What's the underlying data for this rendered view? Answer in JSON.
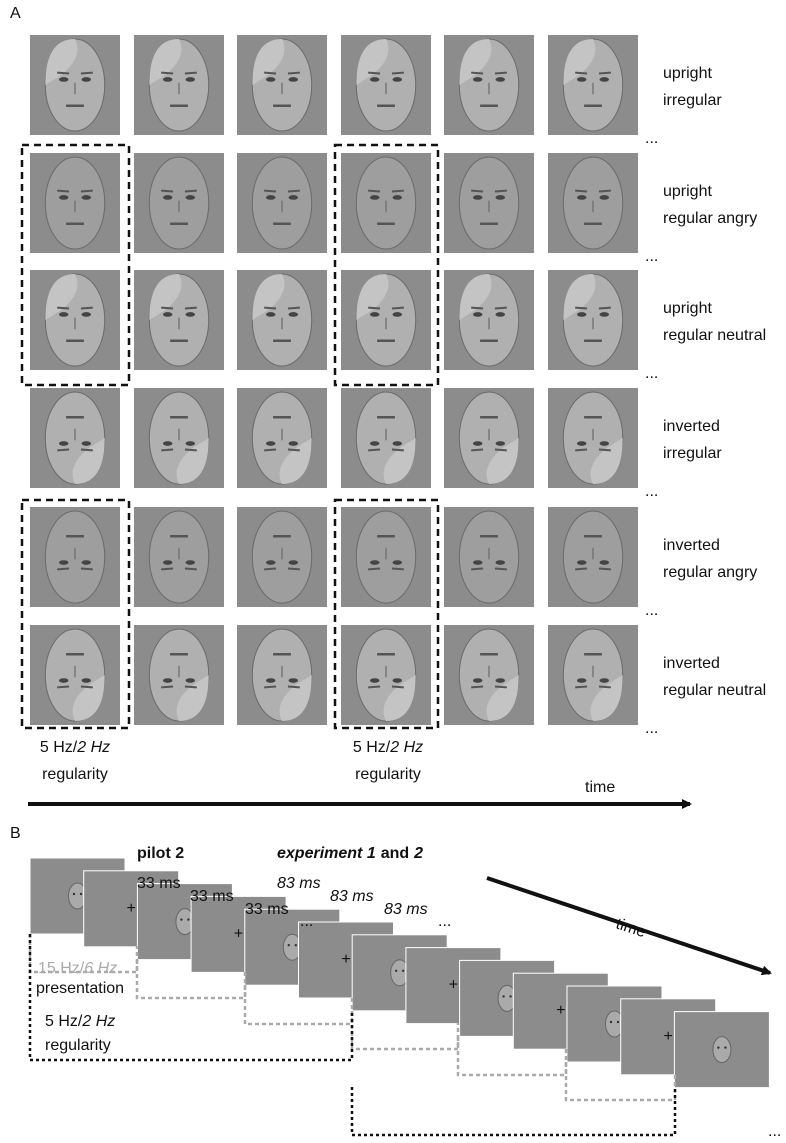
{
  "panel_a": {
    "label": "A",
    "rows": [
      {
        "line1": "upright",
        "line2": "irregular",
        "ellipsis": "..."
      },
      {
        "line1": "upright",
        "line2": "regular angry",
        "ellipsis": "..."
      },
      {
        "line1": "upright",
        "line2": "regular neutral",
        "ellipsis": "..."
      },
      {
        "line1": "inverted",
        "line2": "irregular",
        "ellipsis": "..."
      },
      {
        "line1": "inverted",
        "line2": "regular angry",
        "ellipsis": "..."
      },
      {
        "line1": "inverted",
        "line2": "regular neutral",
        "ellipsis": "..."
      }
    ],
    "annotations": [
      {
        "rate": "5 Hz/",
        "rate_italic": "2 Hz",
        "text": "regularity"
      },
      {
        "rate": "5 Hz/",
        "rate_italic": "2 Hz",
        "text": "regularity"
      }
    ],
    "time_label": "time"
  },
  "panel_b": {
    "label": "B",
    "pilot": {
      "title": "pilot 2",
      "durations": [
        "33 ms",
        "33 ms",
        "33 ms"
      ],
      "ellipsis": "..."
    },
    "experiment": {
      "title_italic": "experiment 1",
      "title_and": "and",
      "title_num": "2",
      "durations": [
        "83 ms",
        "83 ms",
        "83 ms"
      ],
      "ellipsis": "..."
    },
    "presentation": {
      "rate": "15 Hz/",
      "rate_italic": "6 Hz",
      "text": "presentation"
    },
    "regularity": {
      "rate": "5 Hz/",
      "rate_italic": "2 Hz",
      "text": "regularity"
    },
    "time_label": "time",
    "ellipsis": "..."
  }
}
